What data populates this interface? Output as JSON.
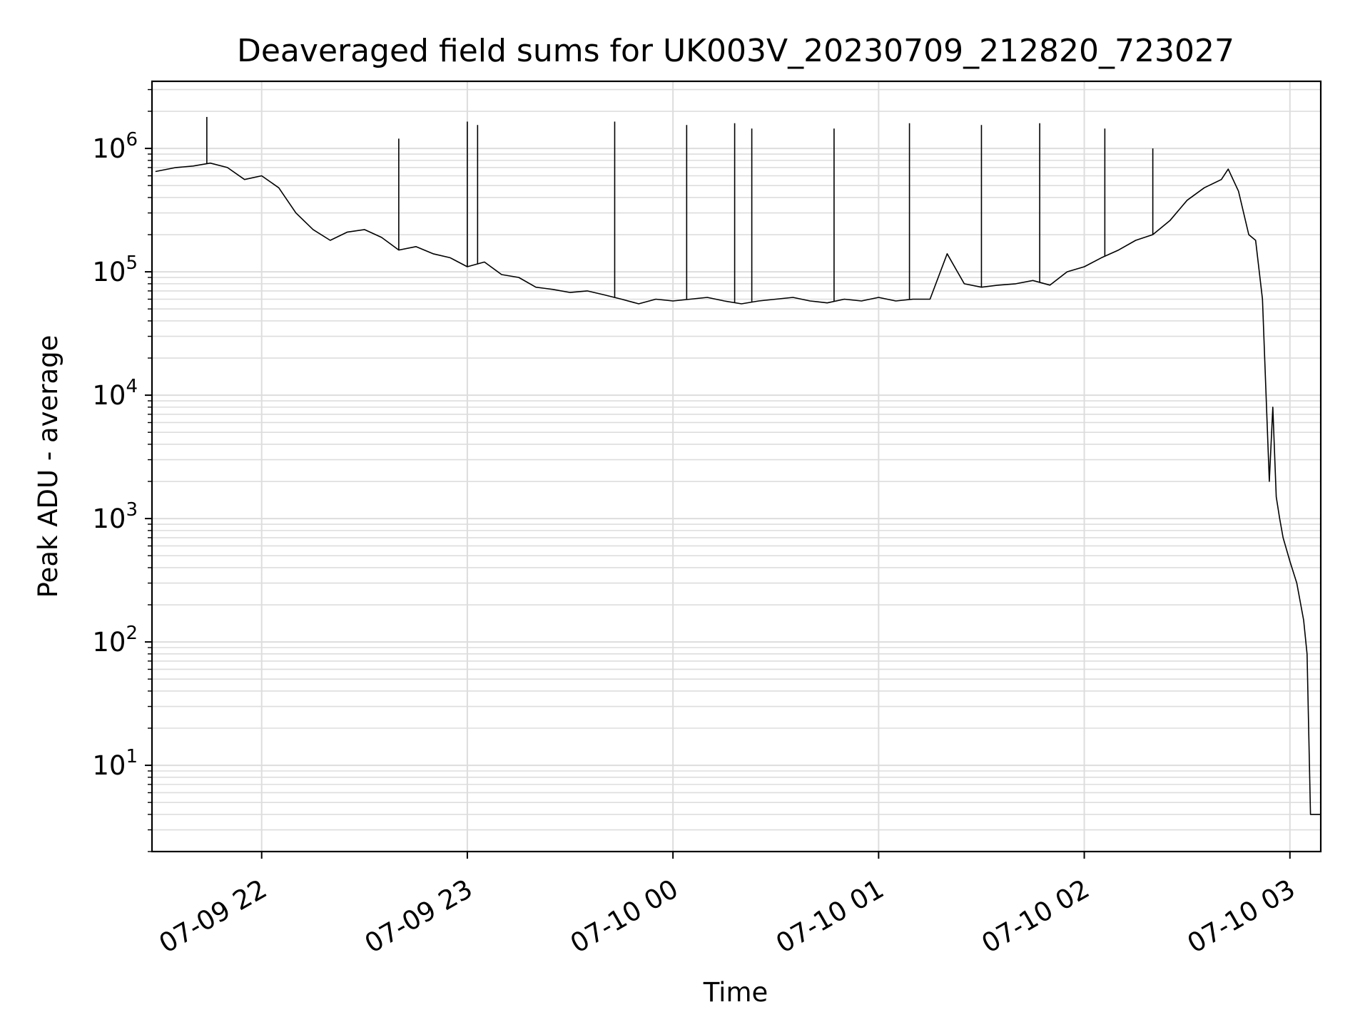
{
  "chart_data": {
    "type": "line",
    "title": "Deaveraged field sums for UK003V_20230709_212820_723027",
    "xlabel": "Time",
    "ylabel": "Peak ADU - average",
    "x_ticks": [
      "07-09 22",
      "07-09 23",
      "07-10 00",
      "07-10 01",
      "07-10 02",
      "07-10 03"
    ],
    "x_tick_values": [
      "2023-07-09 22:00",
      "2023-07-09 23:00",
      "2023-07-10 00:00",
      "2023-07-10 01:00",
      "2023-07-10 02:00",
      "2023-07-10 03:00"
    ],
    "y_ticks": [
      {
        "base": "10",
        "exp": "1"
      },
      {
        "base": "10",
        "exp": "2"
      },
      {
        "base": "10",
        "exp": "3"
      },
      {
        "base": "10",
        "exp": "4"
      },
      {
        "base": "10",
        "exp": "5"
      },
      {
        "base": "10",
        "exp": "6"
      }
    ],
    "y_scale": "log",
    "ylim": [
      2,
      3500000
    ],
    "xlim": [
      "2023-07-09 21:28",
      "2023-07-10 03:09"
    ],
    "grid": "major and minor",
    "line_color": "#000000",
    "grid_color": "#dddddd",
    "series": [
      {
        "x": [
          "2023-07-09 21:29",
          "2023-07-09 21:35",
          "2023-07-09 21:40",
          "2023-07-09 21:45",
          "2023-07-09 21:50",
          "2023-07-09 21:55",
          "2023-07-09 22:00",
          "2023-07-09 22:05",
          "2023-07-09 22:10",
          "2023-07-09 22:15",
          "2023-07-09 22:20",
          "2023-07-09 22:25",
          "2023-07-09 22:30",
          "2023-07-09 22:35",
          "2023-07-09 22:40",
          "2023-07-09 22:45",
          "2023-07-09 22:50",
          "2023-07-09 22:55",
          "2023-07-09 23:00",
          "2023-07-09 23:05",
          "2023-07-09 23:10",
          "2023-07-09 23:15",
          "2023-07-09 23:20",
          "2023-07-09 23:25",
          "2023-07-09 23:30",
          "2023-07-09 23:35",
          "2023-07-09 23:40",
          "2023-07-09 23:45",
          "2023-07-09 23:50",
          "2023-07-09 23:55",
          "2023-07-10 00:00",
          "2023-07-10 00:05",
          "2023-07-10 00:10",
          "2023-07-10 00:15",
          "2023-07-10 00:20",
          "2023-07-10 00:25",
          "2023-07-10 00:30",
          "2023-07-10 00:35",
          "2023-07-10 00:40",
          "2023-07-10 00:45",
          "2023-07-10 00:50",
          "2023-07-10 00:55",
          "2023-07-10 01:00",
          "2023-07-10 01:05",
          "2023-07-10 01:10",
          "2023-07-10 01:15",
          "2023-07-10 01:20",
          "2023-07-10 01:25",
          "2023-07-10 01:30",
          "2023-07-10 01:35",
          "2023-07-10 01:40",
          "2023-07-10 01:45",
          "2023-07-10 01:50",
          "2023-07-10 01:55",
          "2023-07-10 02:00",
          "2023-07-10 02:05",
          "2023-07-10 02:10",
          "2023-07-10 02:15",
          "2023-07-10 02:20",
          "2023-07-10 02:25",
          "2023-07-10 02:30",
          "2023-07-10 02:35",
          "2023-07-10 02:40",
          "2023-07-10 02:42",
          "2023-07-10 02:45",
          "2023-07-10 02:48",
          "2023-07-10 02:50",
          "2023-07-10 02:52",
          "2023-07-10 02:54",
          "2023-07-10 02:55",
          "2023-07-10 02:56",
          "2023-07-10 02:57",
          "2023-07-10 02:58",
          "2023-07-10 03:00",
          "2023-07-10 03:02",
          "2023-07-10 03:04",
          "2023-07-10 03:05",
          "2023-07-10 03:06",
          "2023-07-10 03:07",
          "2023-07-10 03:09"
        ],
        "y": [
          650000,
          700000,
          720000,
          760000,
          700000,
          560000,
          600000,
          480000,
          300000,
          220000,
          180000,
          210000,
          220000,
          190000,
          150000,
          160000,
          140000,
          130000,
          110000,
          120000,
          95000,
          90000,
          75000,
          72000,
          68000,
          70000,
          65000,
          60000,
          55000,
          60000,
          58000,
          60000,
          62000,
          58000,
          55000,
          58000,
          60000,
          62000,
          58000,
          56000,
          60000,
          58000,
          62000,
          58000,
          60000,
          60000,
          140000,
          80000,
          75000,
          78000,
          80000,
          85000,
          78000,
          100000,
          110000,
          130000,
          150000,
          180000,
          200000,
          260000,
          380000,
          480000,
          560000,
          680000,
          450000,
          200000,
          180000,
          60000,
          2000,
          8000,
          1500,
          1000,
          700,
          450,
          300,
          150,
          80,
          4,
          4,
          4
        ]
      }
    ],
    "spikes": [
      {
        "x": "2023-07-09 21:44",
        "y": 1800000
      },
      {
        "x": "2023-07-09 22:40",
        "y": 1200000
      },
      {
        "x": "2023-07-09 23:00",
        "y": 1650000
      },
      {
        "x": "2023-07-09 23:03",
        "y": 1550000
      },
      {
        "x": "2023-07-09 23:43",
        "y": 1650000
      },
      {
        "x": "2023-07-10 00:04",
        "y": 1550000
      },
      {
        "x": "2023-07-10 00:18",
        "y": 1600000
      },
      {
        "x": "2023-07-10 00:23",
        "y": 1450000
      },
      {
        "x": "2023-07-10 00:47",
        "y": 1450000
      },
      {
        "x": "2023-07-10 01:09",
        "y": 1600000
      },
      {
        "x": "2023-07-10 01:30",
        "y": 1550000
      },
      {
        "x": "2023-07-10 01:47",
        "y": 1600000
      },
      {
        "x": "2023-07-10 02:06",
        "y": 1450000
      },
      {
        "x": "2023-07-10 02:20",
        "y": 1000000
      }
    ]
  }
}
